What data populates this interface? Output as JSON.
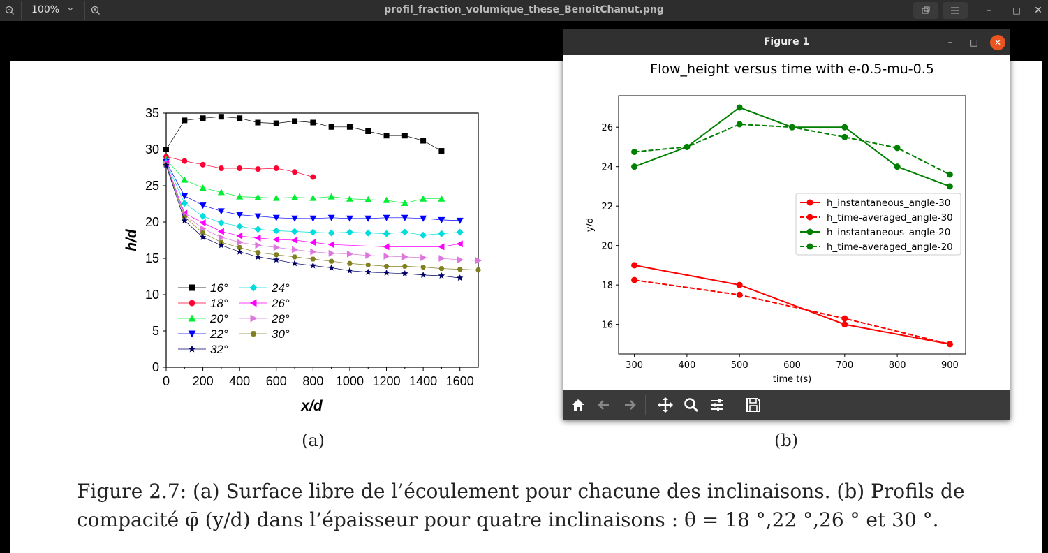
{
  "viewer": {
    "zoom": "100%",
    "filename": "profil_fraction_volumique_these_BenoitChanut.png"
  },
  "figure_window": {
    "title": "Figure 1",
    "toolbar_icons": [
      "home-icon",
      "back-arrow-icon",
      "forward-arrow-icon",
      "pan-icon",
      "zoom-icon",
      "configure-subplots-icon",
      "save-icon"
    ]
  },
  "document": {
    "label_a": "(a)",
    "label_b": "(b)",
    "caption_line1": "Figure 2.7: (a) Surface libre de l’écoulement pour chacune des inclinaisons. (b) Profils de",
    "caption_line2": "compacité φ̄ (y/d) dans l’épaisseur pour quatre inclinaisons : θ = 18 °,22 °,26 ° et 30 °."
  },
  "chart_data": [
    {
      "type": "line",
      "title": "",
      "xlabel": "x/d",
      "ylabel": "h/d",
      "xlim": [
        0,
        1700
      ],
      "ylim": [
        0,
        35
      ],
      "xticks": [
        0,
        200,
        400,
        600,
        800,
        1000,
        1200,
        1400,
        1600
      ],
      "yticks": [
        0,
        5,
        10,
        15,
        20,
        25,
        30,
        35
      ],
      "legend_position": "lower-left",
      "series": [
        {
          "name": "16°",
          "color": "#000000",
          "marker": "square",
          "x": [
            0,
            100,
            200,
            300,
            400,
            500,
            600,
            700,
            800,
            900,
            1000,
            1100,
            1200,
            1300,
            1400,
            1500
          ],
          "y": [
            30,
            34,
            34.3,
            34.5,
            34.3,
            33.7,
            33.6,
            33.9,
            33.7,
            33.1,
            33.1,
            32.5,
            31.9,
            31.9,
            31.2,
            29.8
          ]
        },
        {
          "name": "18°",
          "color": "#ff0033",
          "marker": "circle",
          "x": [
            0,
            100,
            200,
            300,
            400,
            500,
            600,
            700,
            800
          ],
          "y": [
            29,
            28.4,
            27.9,
            27.4,
            27.4,
            27.3,
            27.4,
            26.9,
            26.2
          ]
        },
        {
          "name": "20°",
          "color": "#00ee33",
          "marker": "triangle-up",
          "x": [
            0,
            100,
            200,
            300,
            400,
            500,
            600,
            700,
            800,
            900,
            1000,
            1100,
            1200,
            1300,
            1400,
            1500
          ],
          "y": [
            28.6,
            25.8,
            24.7,
            24.1,
            23.5,
            23.4,
            23.3,
            23.4,
            23.3,
            23.5,
            23.2,
            23.1,
            23.0,
            22.6,
            23.2,
            23.2
          ]
        },
        {
          "name": "22°",
          "color": "#0000ff",
          "marker": "triangle-down",
          "x": [
            0,
            100,
            200,
            300,
            400,
            500,
            600,
            700,
            800,
            900,
            1000,
            1100,
            1200,
            1300,
            1400,
            1500,
            1600
          ],
          "y": [
            28.3,
            23.6,
            22.3,
            21.5,
            21.0,
            20.8,
            20.6,
            20.5,
            20.5,
            20.6,
            20.5,
            20.5,
            20.6,
            20.6,
            20.5,
            20.3,
            20.2
          ]
        },
        {
          "name": "24°",
          "color": "#00dddd",
          "marker": "diamond",
          "x": [
            0,
            100,
            200,
            300,
            400,
            500,
            600,
            700,
            800,
            900,
            1000,
            1100,
            1200,
            1300,
            1400,
            1500,
            1600
          ],
          "y": [
            28.2,
            22.6,
            20.8,
            19.9,
            19.4,
            19.0,
            18.8,
            18.7,
            18.6,
            18.5,
            18.6,
            18.5,
            18.4,
            18.6,
            18.2,
            18.4,
            18.6
          ]
        },
        {
          "name": "26°",
          "color": "#ff00ff",
          "marker": "triangle-left",
          "x": [
            0,
            100,
            200,
            300,
            400,
            500,
            600,
            700,
            800,
            900,
            1200,
            1500,
            1600
          ],
          "y": [
            28.1,
            21.2,
            19.9,
            18.7,
            18.1,
            17.8,
            17.6,
            17.5,
            17.2,
            16.9,
            16.6,
            16.6,
            17.0
          ]
        },
        {
          "name": "28°",
          "color": "#dd77dd",
          "marker": "triangle-right",
          "x": [
            0,
            100,
            200,
            300,
            400,
            500,
            600,
            700,
            800,
            900,
            1000,
            1100,
            1200,
            1300,
            1400,
            1500,
            1600,
            1700
          ],
          "y": [
            28.0,
            21.0,
            19.1,
            17.9,
            17.2,
            16.8,
            16.5,
            16.2,
            15.9,
            15.7,
            15.6,
            15.4,
            15.3,
            15.2,
            15.1,
            15.0,
            14.8,
            14.7
          ]
        },
        {
          "name": "30°",
          "color": "#808020",
          "marker": "hexagon",
          "x": [
            0,
            100,
            200,
            300,
            400,
            500,
            600,
            700,
            800,
            900,
            1000,
            1100,
            1200,
            1300,
            1400,
            1500,
            1600,
            1700
          ],
          "y": [
            27.9,
            20.7,
            18.5,
            17.2,
            16.5,
            15.8,
            15.5,
            15.2,
            14.9,
            14.6,
            14.3,
            14.1,
            13.9,
            13.9,
            13.8,
            13.6,
            13.5,
            13.4
          ]
        },
        {
          "name": "32°",
          "color": "#000066",
          "marker": "star",
          "x": [
            0,
            100,
            200,
            300,
            400,
            500,
            600,
            700,
            800,
            900,
            1000,
            1100,
            1200,
            1300,
            1400,
            1500,
            1600
          ],
          "y": [
            27.8,
            20.2,
            17.9,
            16.8,
            15.9,
            15.2,
            14.8,
            14.3,
            14.0,
            13.7,
            13.3,
            13.1,
            13.0,
            12.9,
            12.7,
            12.6,
            12.3
          ]
        }
      ]
    },
    {
      "type": "line",
      "title": "Flow_height versus time with e-0.5-mu-0.5",
      "xlabel": "time t(s)",
      "ylabel": "y/d",
      "xlim": [
        270,
        930
      ],
      "ylim": [
        14.5,
        27.6
      ],
      "xticks": [
        300,
        400,
        500,
        600,
        700,
        800,
        900
      ],
      "yticks": [
        16,
        18,
        20,
        22,
        24,
        26
      ],
      "legend_position": "center-right",
      "series": [
        {
          "name": "h_instantaneous_angle-30",
          "color": "#ff0000",
          "dash": false,
          "x": [
            300,
            500,
            700,
            900
          ],
          "y": [
            19.0,
            18.0,
            16.0,
            15.0
          ]
        },
        {
          "name": "h_time-averaged_angle-30",
          "color": "#ff0000",
          "dash": true,
          "x": [
            300,
            500,
            700,
            900
          ],
          "y": [
            18.25,
            17.5,
            16.3,
            15.0
          ]
        },
        {
          "name": "h_instantaneous_angle-20",
          "color": "#008000",
          "dash": false,
          "x": [
            300,
            400,
            500,
            600,
            700,
            800,
            900
          ],
          "y": [
            24.0,
            25.0,
            27.0,
            26.0,
            26.0,
            24.0,
            23.0
          ]
        },
        {
          "name": "h_time-averaged_angle-20",
          "color": "#008000",
          "dash": true,
          "x": [
            300,
            400,
            500,
            600,
            700,
            800,
            900
          ],
          "y": [
            24.75,
            25.0,
            26.15,
            26.0,
            25.5,
            24.95,
            23.6
          ]
        }
      ]
    }
  ]
}
